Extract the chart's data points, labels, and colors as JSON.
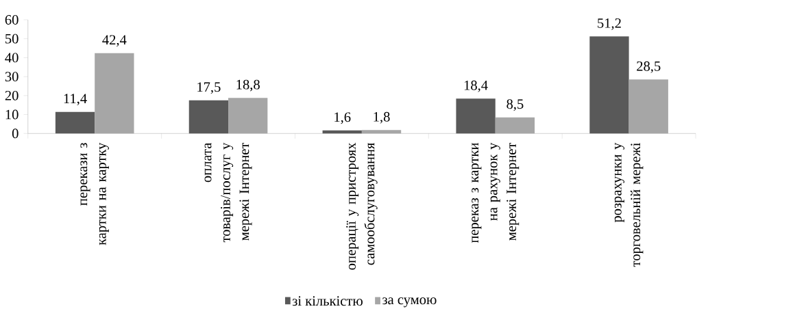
{
  "chart_data": {
    "type": "bar",
    "categories": [
      "перекази з картки на картку",
      "оплата товарів/послуг у мережі Інтернет",
      "операції у пристроях самообслуговування",
      "переказ з картки на рахунок у мережі Інтернет",
      "розрахунки у торговельній мережі"
    ],
    "series": [
      {
        "name": "зі кількістю",
        "color": "#595959",
        "values": [
          11.4,
          17.5,
          1.6,
          18.4,
          51.2
        ],
        "value_labels": [
          "11,4",
          "17,5",
          "1,6",
          "18,4",
          "51,2"
        ]
      },
      {
        "name": "за сумою",
        "color": "#a6a6a6",
        "values": [
          42.4,
          18.8,
          1.8,
          8.5,
          28.5
        ],
        "value_labels": [
          "42,4",
          "18,8",
          "1,8",
          "8,5",
          "28,5"
        ]
      }
    ],
    "ylim": [
      0,
      60
    ],
    "yticks": [
      0,
      10,
      20,
      30,
      40,
      50,
      60
    ],
    "grid": false,
    "legend": "bottom"
  }
}
